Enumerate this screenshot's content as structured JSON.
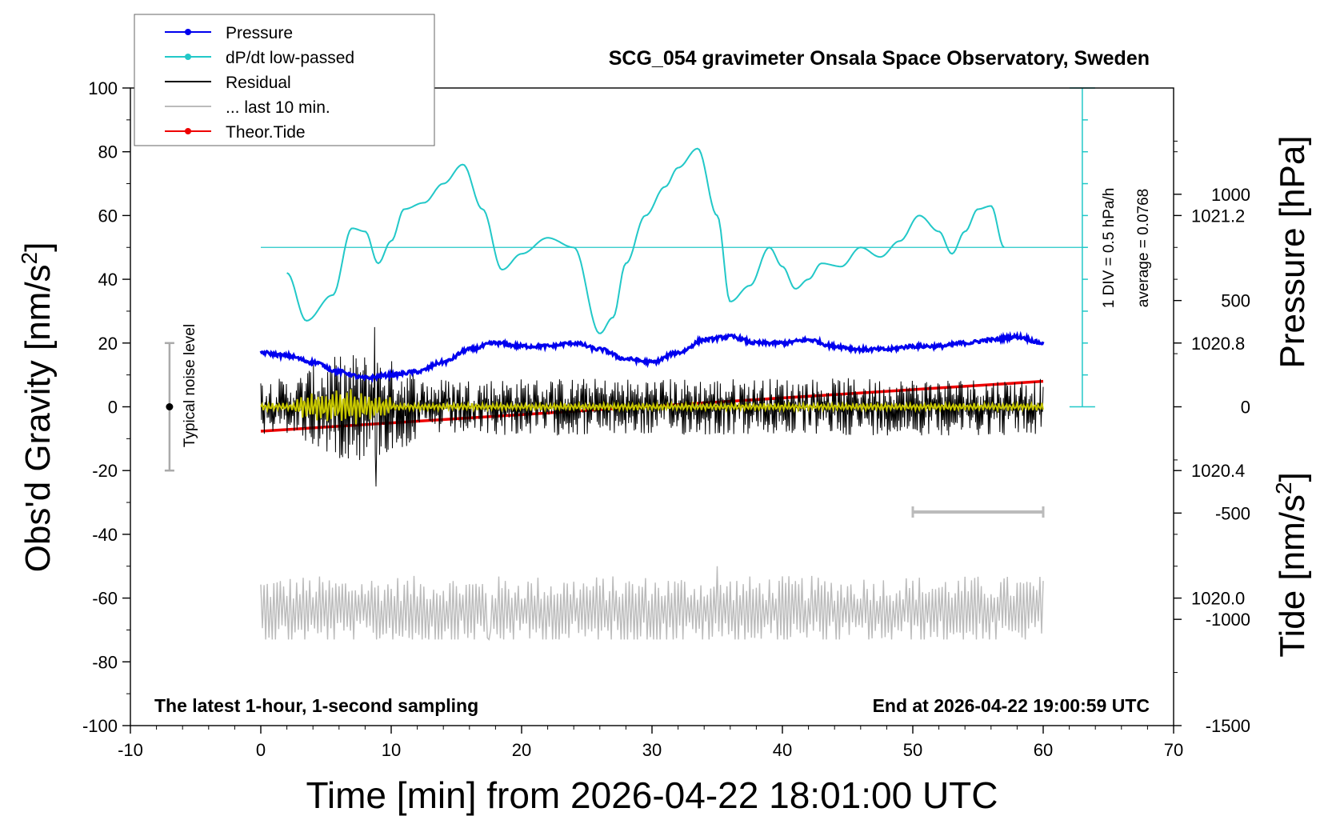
{
  "chart_data": {
    "type": "line",
    "title": "SCG_054 gravimeter Onsala Space Observatory, Sweden",
    "xlabel": "Time [min] from 2026-04-22 18:01:00 UTC",
    "ylabel_left_main": "Obs'd Gravity [nm/s",
    "ylabel_left_sup": "2",
    "ylabel_left_close": "]",
    "ylabel_right_top": "Pressure [hPa]",
    "ylabel_right_bottom_main": "Tide [nm/s",
    "ylabel_right_bottom_sup": "2",
    "ylabel_right_bottom_close": "]",
    "xlim": [
      -10,
      70
    ],
    "ylim": [
      -100,
      100
    ],
    "xticks": [
      -10,
      0,
      10,
      20,
      30,
      40,
      50,
      60,
      70
    ],
    "yticks": [
      100,
      80,
      60,
      40,
      20,
      0,
      -20,
      -40,
      -60,
      -80,
      -100
    ],
    "pressure_axis": {
      "range": [
        1019.6,
        1021.6
      ],
      "ticks": [
        1020.0,
        1020.4,
        1020.8,
        1021.2
      ],
      "tick_labels": [
        "1020.0",
        "1020.4",
        "1020.8",
        "1021.2"
      ]
    },
    "tide_axis": {
      "range": [
        -1500,
        1500
      ],
      "ticks": [
        1000,
        500,
        0,
        -500,
        -1000,
        -1500
      ],
      "tick_labels": [
        "1000",
        "500",
        "0",
        "-500",
        "-1000",
        "-1500"
      ]
    },
    "legend": {
      "placement": "top-left",
      "entries": [
        {
          "label": "Pressure",
          "color": "#0000ee",
          "marker": true
        },
        {
          "label": "dP/dt low-passed",
          "color": "#22c8c8",
          "marker": true
        },
        {
          "label": "Residual",
          "color": "#000000",
          "marker": false
        },
        {
          "label": "... last 10 min.",
          "color": "#bbbbbb",
          "marker": false
        },
        {
          "label": "Theor.Tide",
          "color": "#ee0000",
          "marker": true
        }
      ]
    },
    "annotations": {
      "bottom_left": "The latest 1-hour, 1-second sampling",
      "bottom_right": "End at 2026-04-22 19:00:59 UTC",
      "noise": "Typical noise level",
      "scale_line1": "1 DIV = 0.5 hPa/h",
      "scale_line2": "average = 0.0768"
    },
    "noise_bar": {
      "x": -7,
      "y_center": 0,
      "y_half": 20
    },
    "dpdt_scale_bar": {
      "x": 63,
      "y_bottom": 0,
      "y_top": 100,
      "divisions": 10,
      "baseline_y": 50
    },
    "last10_marker": {
      "x_start": 50,
      "x_end": 60,
      "y": -33
    },
    "series": [
      {
        "name": "Pressure",
        "axis": "pressure_hPa",
        "color": "#0000ee",
        "x": [
          0,
          2,
          4,
          6,
          8,
          10,
          12,
          14,
          16,
          18,
          20,
          22,
          24,
          26,
          28,
          30,
          32,
          34,
          36,
          38,
          40,
          42,
          44,
          46,
          48,
          50,
          52,
          54,
          56,
          58,
          60
        ],
        "y": [
          1020.77,
          1020.76,
          1020.74,
          1020.71,
          1020.69,
          1020.7,
          1020.71,
          1020.74,
          1020.78,
          1020.8,
          1020.79,
          1020.79,
          1020.8,
          1020.78,
          1020.75,
          1020.74,
          1020.77,
          1020.81,
          1020.82,
          1020.8,
          1020.8,
          1020.81,
          1020.79,
          1020.78,
          1020.78,
          1020.79,
          1020.79,
          1020.8,
          1020.81,
          1020.82,
          1020.8
        ]
      },
      {
        "name": "dP/dt low-passed",
        "axis": "gravity_units",
        "color": "#22c8c8",
        "x": [
          2,
          3.5,
          5.5,
          7,
          8,
          9,
          10,
          11,
          12.5,
          14,
          15.5,
          17,
          18.5,
          20,
          22,
          24,
          26,
          27,
          28,
          29.5,
          31,
          32,
          33.5,
          35,
          36,
          37.5,
          39,
          40,
          41,
          42,
          43,
          44.5,
          46,
          47.5,
          49,
          50.5,
          52,
          53,
          54,
          55,
          56,
          57
        ],
        "y": [
          42,
          27,
          35,
          56,
          55,
          45,
          52,
          62,
          64,
          70,
          76,
          62,
          43,
          48,
          53,
          50,
          23,
          28,
          45,
          60,
          69,
          75,
          81,
          60,
          33,
          38,
          50,
          44,
          37,
          40,
          45,
          44,
          50,
          47,
          52,
          60,
          55,
          48,
          55,
          62,
          63,
          50
        ]
      },
      {
        "name": "Residual",
        "axis": "gravity_units",
        "color": "#000000",
        "x_range": [
          0,
          60
        ],
        "envelope_min": -25,
        "envelope_max": 25
      },
      {
        "name": "... last 10 min.",
        "axis": "gravity_units",
        "color": "#bbbbbb",
        "x_range": [
          0,
          60
        ],
        "center": -64,
        "envelope_min": -73,
        "envelope_max": -50
      },
      {
        "name": "Theor.Tide",
        "axis": "tide_nm_s2",
        "color": "#ee0000",
        "x": [
          0,
          60
        ],
        "y": [
          -115,
          120
        ]
      }
    ]
  }
}
